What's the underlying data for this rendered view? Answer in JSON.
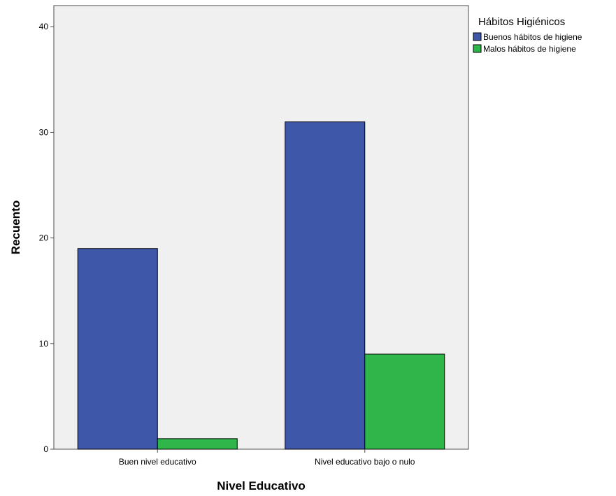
{
  "chart_data": {
    "type": "bar",
    "categories": [
      "Buen nivel educativo",
      "Nivel educativo bajo o nulo"
    ],
    "series": [
      {
        "name": "Buenos hábitos de higiene",
        "values": [
          19,
          31
        ],
        "color": "#3f57a9"
      },
      {
        "name": "Malos hábitos de higiene",
        "values": [
          1,
          9
        ],
        "color": "#2fb64a"
      }
    ],
    "xlabel": "Nivel Educativo",
    "ylabel": "Recuento",
    "ylim": [
      0,
      42
    ],
    "yticks": [
      0,
      10,
      20,
      30,
      40
    ],
    "legend": {
      "title": "Hábitos Higiénicos",
      "position": "top-right"
    },
    "plot_background": "#f0f0f0",
    "grid": false
  }
}
